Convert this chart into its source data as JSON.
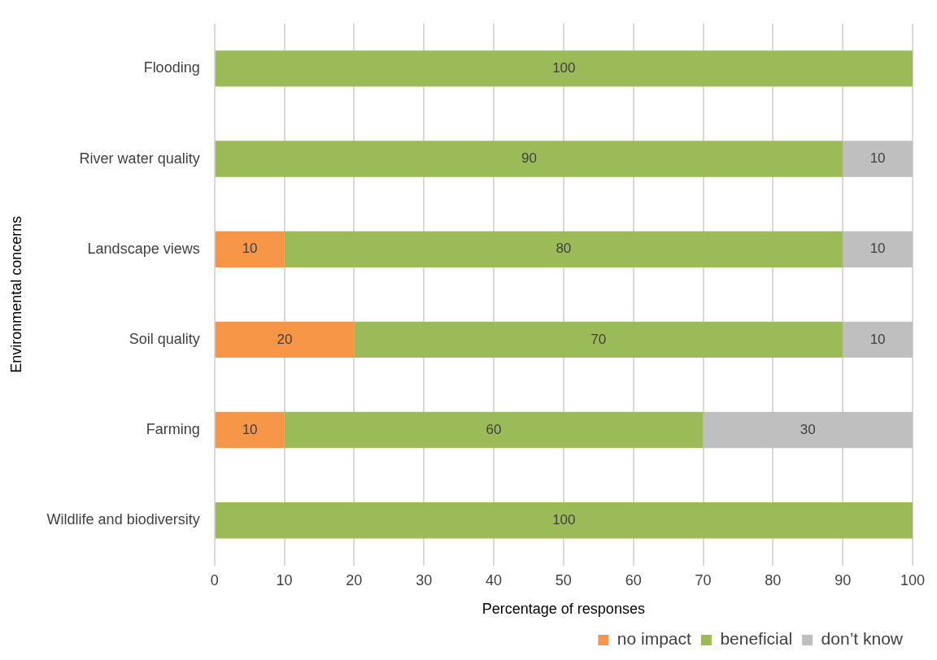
{
  "chart_data": {
    "type": "bar",
    "orientation": "horizontal",
    "stacked": true,
    "xlabel": "Percentage of responses",
    "ylabel": "Environmental concerns",
    "categories": [
      "Flooding",
      "River water quality",
      "Landscape views",
      "Soil quality",
      "Farming",
      "Wildlife and biodiversity"
    ],
    "series": [
      {
        "name": "no impact",
        "color": "#f79646",
        "values": [
          null,
          null,
          10,
          20,
          10,
          null
        ]
      },
      {
        "name": "beneficial",
        "color": "#9bbb59",
        "values": [
          100,
          90,
          80,
          70,
          60,
          100
        ]
      },
      {
        "name": "don’t know",
        "color": "#bfbfbf",
        "values": [
          null,
          10,
          10,
          10,
          30,
          null
        ]
      }
    ],
    "xlim": [
      0,
      100
    ],
    "xticks": [
      0,
      10,
      20,
      30,
      40,
      50,
      60,
      70,
      80,
      90,
      100
    ],
    "grid": "x",
    "legend": "bottom right",
    "data_labels": true
  }
}
